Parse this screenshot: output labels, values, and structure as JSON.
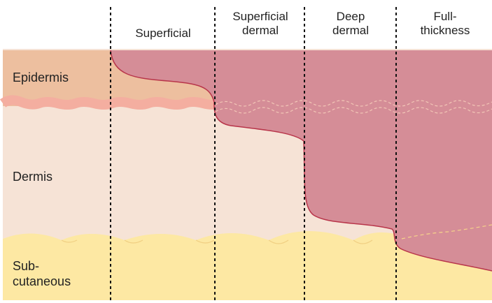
{
  "columns": [
    {
      "lines": [
        "Superficial"
      ]
    },
    {
      "lines": [
        "Superficial",
        "dermal"
      ]
    },
    {
      "lines": [
        "Deep",
        "dermal"
      ]
    },
    {
      "lines": [
        "Full-",
        "thickness"
      ]
    }
  ],
  "layers": {
    "epidermis": "Epidermis",
    "dermis": "Dermis",
    "subcutaneous": [
      "Sub-",
      "cutaneous"
    ]
  },
  "colors": {
    "epidermis": "#edbf9f",
    "dermis": "#f6e3d6",
    "basement_wave": "#f4aea0",
    "subcutaneous": "#fde8a3",
    "burn": "#d58d97",
    "burn_outline": "#b8354a",
    "separator": "#111111"
  }
}
